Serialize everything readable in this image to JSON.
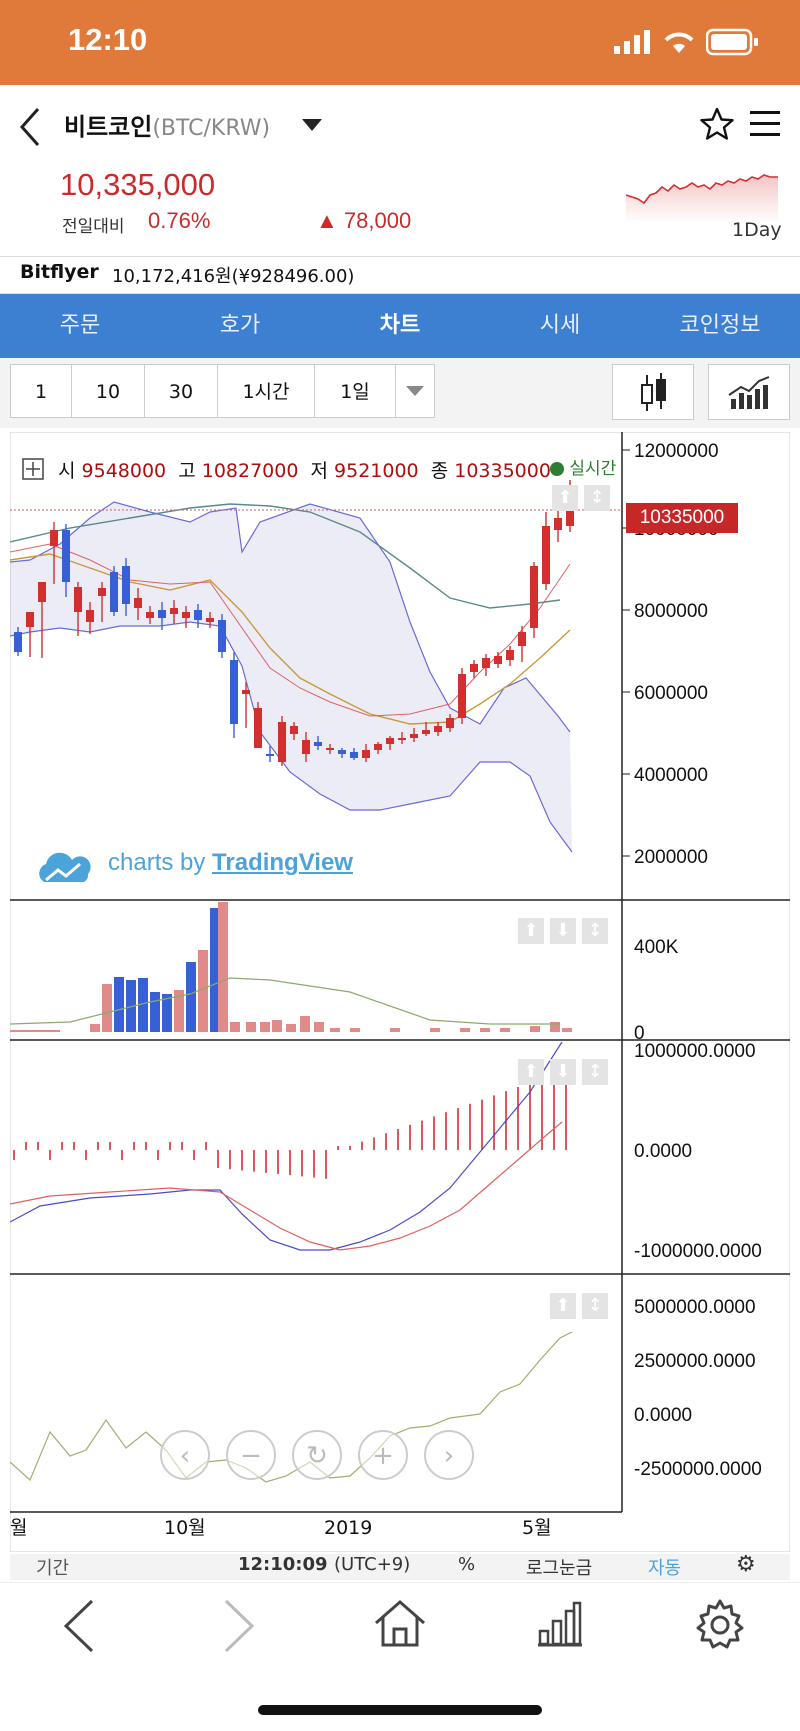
{
  "status": {
    "time": "12:10"
  },
  "header": {
    "coin_name": "비트코인",
    "coin_pair": "(BTC/KRW)",
    "price": "10,335,000",
    "prev_label": "전일대비",
    "change_pct": "0.76%",
    "change_abs": "▲ 78,000",
    "period": "1Day"
  },
  "exchange": {
    "name": "Bitflyer",
    "value": "10,172,416원(¥928496.00)"
  },
  "tabs": [
    "주문",
    "호가",
    "차트",
    "시세",
    "코인정보"
  ],
  "active_tab": "차트",
  "intervals": [
    "1",
    "10",
    "30",
    "1시간",
    "1일"
  ],
  "chart": {
    "ohlc_labels": {
      "open": "시",
      "high": "고",
      "low": "저",
      "close": "종"
    },
    "ohlc": {
      "open": "9548000",
      "high": "10827000",
      "low": "9521000",
      "close": "10335000"
    },
    "live_label": "실시간",
    "last_price_tag": "10335000",
    "attribution": "charts by",
    "attribution_brand": "TradingView",
    "price_axis": [
      "12000000",
      "10000000",
      "8000000",
      "6000000",
      "4000000",
      "2000000"
    ],
    "volume_axis": [
      "400K",
      "0"
    ],
    "macd_axis": [
      "1000000.0000",
      "0.0000",
      "-1000000.0000"
    ],
    "osc_axis": [
      "5000000.0000",
      "2500000.0000",
      "0.0000",
      "-2500000.0000"
    ],
    "x_axis": [
      "월",
      "10월",
      "2019",
      "5월"
    ],
    "footer": {
      "period": "기간",
      "time": "12:10:09",
      "tz": "(UTC+9)",
      "pct": "%",
      "log": "로그눈금",
      "auto": "자동"
    }
  },
  "colors": {
    "up": "#d32f2f",
    "down": "#3860d6",
    "accent": "#e07a3a",
    "tab": "#3d7fd0"
  },
  "icons": [
    "back-icon",
    "dropdown-icon",
    "star-icon",
    "menu-icon",
    "candle-chart-icon",
    "indicator-chart-icon",
    "crosshair-icon",
    "settings-icon",
    "home-icon",
    "bar-chart-icon",
    "forward-icon"
  ]
}
